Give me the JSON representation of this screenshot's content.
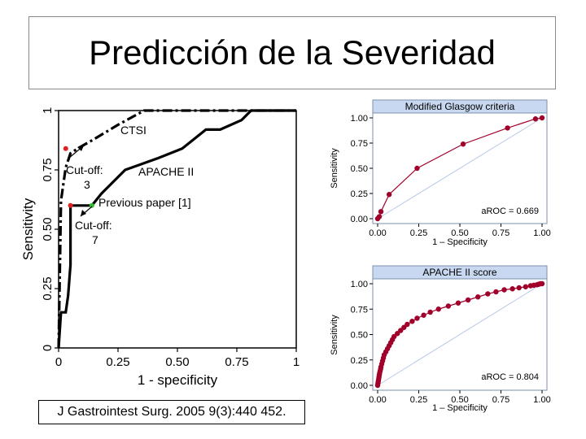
{
  "slide": {
    "title": "Predicción de la Severidad",
    "citation": "J Gastrointest Surg. 2005 9(3):440 452."
  },
  "chart_data": [
    {
      "type": "line",
      "xlabel": "1 - specificity",
      "ylabel": "Sensitivity",
      "xlim": [
        0,
        1
      ],
      "ylim": [
        0,
        1
      ],
      "xticks": [
        "0",
        "0.25",
        "0.50",
        "0.75",
        "1"
      ],
      "yticks": [
        "0",
        "0.25",
        "0.50",
        "0.75",
        "1"
      ],
      "series": [
        {
          "name": "CTSI",
          "style": "dash-dot",
          "x": [
            0,
            0.01,
            0.03,
            0.05,
            0.08,
            0.15,
            0.25,
            0.36,
            1.0
          ],
          "y": [
            0,
            0.62,
            0.76,
            0.82,
            0.84,
            0.88,
            0.94,
            1.0,
            1.0
          ]
        },
        {
          "name": "APACHE II",
          "style": "solid",
          "x": [
            0,
            0.01,
            0.03,
            0.04,
            0.05,
            0.05,
            0.09,
            0.14,
            0.18,
            0.28,
            0.42,
            0.52,
            0.62,
            0.68,
            0.77,
            0.81,
            0.9,
            1.0
          ],
          "y": [
            0,
            0.15,
            0.15,
            0.22,
            0.35,
            0.6,
            0.6,
            0.6,
            0.65,
            0.75,
            0.8,
            0.84,
            0.92,
            0.92,
            0.96,
            1.0,
            1.0,
            1.0
          ]
        }
      ],
      "points": [
        {
          "x": 0.03,
          "y": 0.84,
          "color": "#e02020"
        },
        {
          "x": 0.05,
          "y": 0.6,
          "color": "#e02020"
        },
        {
          "x": 0.14,
          "y": 0.6,
          "color": "#30c030"
        }
      ],
      "annotations": [
        {
          "text": "CTSI"
        },
        {
          "text": "APACHE II"
        },
        {
          "text": "Cut-off:",
          "text2": "3"
        },
        {
          "text": "Cut-off:",
          "text2": "7"
        },
        {
          "text": "Previous paper [1]"
        }
      ]
    },
    {
      "type": "line",
      "title": "Modified Glasgow criteria",
      "xlabel": "1 – Specificity",
      "ylabel": "Sensitivity",
      "xlim": [
        0,
        1
      ],
      "ylim": [
        0,
        1
      ],
      "xticks": [
        "0.00",
        "0.25",
        "0.50",
        "0.75",
        "1.00"
      ],
      "yticks": [
        "0.00",
        "0.25",
        "0.50",
        "0.75",
        "1.00"
      ],
      "annotation": "aROC = 0.669",
      "series": [
        {
          "color": "#a0002a",
          "x": [
            0,
            0.01,
            0.02,
            0.07,
            0.24,
            0.52,
            0.79,
            0.96,
            1.0
          ],
          "y": [
            0,
            0.02,
            0.07,
            0.24,
            0.5,
            0.74,
            0.9,
            0.99,
            1.0
          ]
        }
      ]
    },
    {
      "type": "line",
      "title": "APACHE II score",
      "xlabel": "1 – Specificity",
      "ylabel": "Sensitivity",
      "xlim": [
        0,
        1
      ],
      "ylim": [
        0,
        1
      ],
      "xticks": [
        "0.00",
        "0.25",
        "0.50",
        "0.75",
        "1.00"
      ],
      "yticks": [
        "0.00",
        "0.25",
        "0.50",
        "0.75",
        "1.00"
      ],
      "annotation": "aROC = 0.804",
      "series": [
        {
          "color": "#a0002a",
          "x": [
            0,
            0.002,
            0.004,
            0.006,
            0.008,
            0.01,
            0.012,
            0.015,
            0.018,
            0.02,
            0.025,
            0.03,
            0.035,
            0.04,
            0.05,
            0.06,
            0.07,
            0.08,
            0.09,
            0.1,
            0.12,
            0.14,
            0.16,
            0.18,
            0.21,
            0.24,
            0.28,
            0.32,
            0.37,
            0.43,
            0.49,
            0.55,
            0.61,
            0.67,
            0.72,
            0.77,
            0.82,
            0.86,
            0.9,
            0.93,
            0.95,
            0.97,
            0.98,
            0.99,
            1.0
          ],
          "y": [
            0,
            0.02,
            0.04,
            0.06,
            0.08,
            0.1,
            0.12,
            0.14,
            0.16,
            0.18,
            0.21,
            0.24,
            0.27,
            0.3,
            0.33,
            0.36,
            0.39,
            0.42,
            0.45,
            0.48,
            0.51,
            0.54,
            0.57,
            0.6,
            0.63,
            0.66,
            0.69,
            0.72,
            0.75,
            0.78,
            0.81,
            0.84,
            0.87,
            0.9,
            0.92,
            0.94,
            0.95,
            0.96,
            0.97,
            0.98,
            0.985,
            0.99,
            0.995,
            1.0,
            1.0
          ]
        }
      ]
    }
  ]
}
